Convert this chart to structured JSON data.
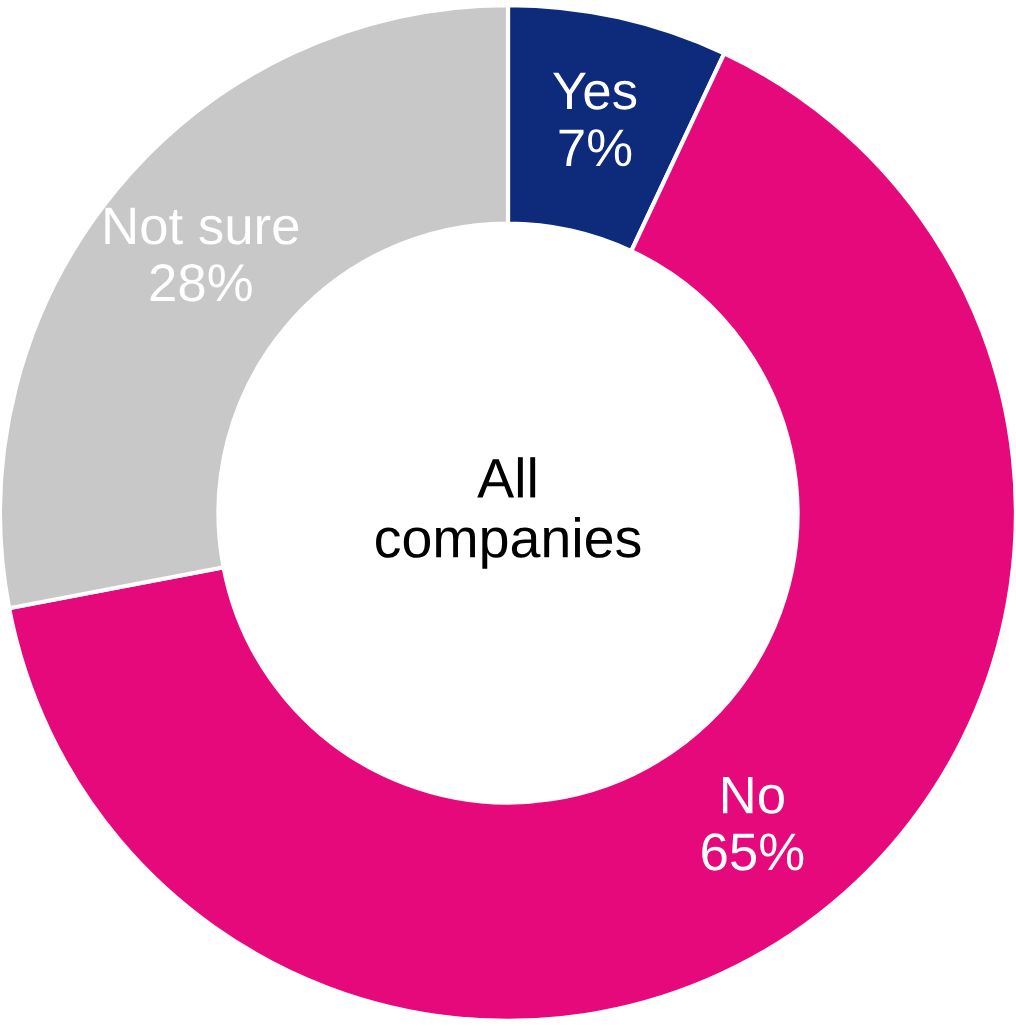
{
  "chart_data": {
    "type": "donut",
    "title": "All companies",
    "categories": [
      "Yes",
      "No",
      "Not sure"
    ],
    "values": [
      7,
      65,
      28
    ],
    "colors": [
      "#0d2b7a",
      "#e6097b",
      "#c8c8c8"
    ],
    "value_labels": [
      "7%",
      "65%",
      "28%"
    ],
    "legend": false
  }
}
